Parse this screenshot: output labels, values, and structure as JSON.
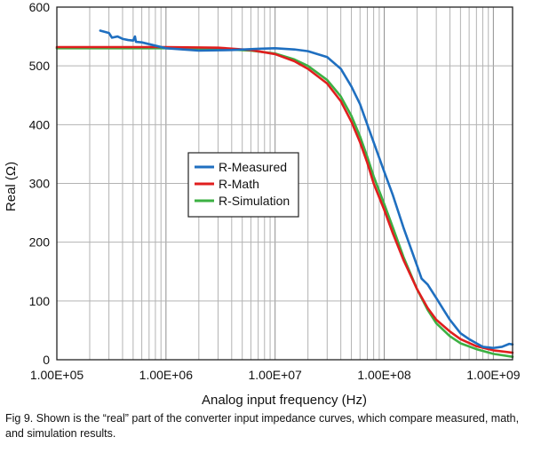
{
  "chart_data": {
    "type": "line",
    "title": "",
    "xlabel": "Analog input frequency (Hz)",
    "ylabel": "Real (Ω)",
    "xscale": "log",
    "xlim": [
      100000,
      1500000000
    ],
    "ylim": [
      0,
      600
    ],
    "x_ticks": [
      {
        "value": 100000,
        "label": "1.00E+05"
      },
      {
        "value": 1000000,
        "label": "1.00E+06"
      },
      {
        "value": 10000000,
        "label": "1.00E+07"
      },
      {
        "value": 100000000,
        "label": "1.00E+08"
      },
      {
        "value": 1000000000,
        "label": "1.00E+09"
      }
    ],
    "y_ticks": [
      0,
      100,
      200,
      300,
      400,
      500,
      600
    ],
    "grid": true,
    "legend_position": "center-left",
    "series": [
      {
        "name": "R-Measured",
        "color": "#1f6fc0",
        "points": [
          [
            250000,
            560
          ],
          [
            300000,
            556
          ],
          [
            320000,
            548
          ],
          [
            360000,
            550
          ],
          [
            400000,
            546
          ],
          [
            450000,
            544
          ],
          [
            500000,
            543
          ],
          [
            520000,
            550
          ],
          [
            530000,
            541
          ],
          [
            600000,
            540
          ],
          [
            700000,
            537
          ],
          [
            1000000,
            530
          ],
          [
            2000000,
            526
          ],
          [
            4000000,
            527
          ],
          [
            7000000,
            529
          ],
          [
            10000000,
            530
          ],
          [
            15000000,
            528
          ],
          [
            20000000,
            525
          ],
          [
            30000000,
            515
          ],
          [
            40000000,
            495
          ],
          [
            50000000,
            465
          ],
          [
            60000000,
            435
          ],
          [
            70000000,
            400
          ],
          [
            80000000,
            370
          ],
          [
            100000000,
            320
          ],
          [
            120000000,
            280
          ],
          [
            150000000,
            225
          ],
          [
            200000000,
            160
          ],
          [
            220000000,
            138
          ],
          [
            250000000,
            128
          ],
          [
            300000000,
            105
          ],
          [
            350000000,
            85
          ],
          [
            400000000,
            68
          ],
          [
            500000000,
            45
          ],
          [
            600000000,
            35
          ],
          [
            700000000,
            28
          ],
          [
            800000000,
            22
          ],
          [
            1000000000,
            20
          ],
          [
            1200000000,
            22
          ],
          [
            1400000000,
            27
          ],
          [
            1500000000,
            26
          ]
        ]
      },
      {
        "name": "R-Math",
        "color": "#e01e1e",
        "points": [
          [
            100000,
            532
          ],
          [
            1000000,
            532
          ],
          [
            3000000,
            531
          ],
          [
            6000000,
            527
          ],
          [
            10000000,
            520
          ],
          [
            15000000,
            508
          ],
          [
            20000000,
            495
          ],
          [
            30000000,
            470
          ],
          [
            40000000,
            440
          ],
          [
            50000000,
            405
          ],
          [
            60000000,
            370
          ],
          [
            70000000,
            335
          ],
          [
            80000000,
            300
          ],
          [
            100000000,
            255
          ],
          [
            120000000,
            215
          ],
          [
            150000000,
            170
          ],
          [
            200000000,
            120
          ],
          [
            250000000,
            88
          ],
          [
            300000000,
            68
          ],
          [
            400000000,
            48
          ],
          [
            500000000,
            35
          ],
          [
            700000000,
            23
          ],
          [
            1000000000,
            16
          ],
          [
            1500000000,
            12
          ]
        ]
      },
      {
        "name": "R-Simulation",
        "color": "#3cb043",
        "points": [
          [
            100000,
            530
          ],
          [
            1000000,
            530
          ],
          [
            3000000,
            529
          ],
          [
            6000000,
            526
          ],
          [
            10000000,
            521
          ],
          [
            15000000,
            511
          ],
          [
            20000000,
            500
          ],
          [
            30000000,
            476
          ],
          [
            40000000,
            448
          ],
          [
            50000000,
            415
          ],
          [
            60000000,
            380
          ],
          [
            70000000,
            345
          ],
          [
            80000000,
            312
          ],
          [
            100000000,
            265
          ],
          [
            120000000,
            225
          ],
          [
            150000000,
            175
          ],
          [
            200000000,
            120
          ],
          [
            250000000,
            85
          ],
          [
            300000000,
            62
          ],
          [
            400000000,
            40
          ],
          [
            500000000,
            28
          ],
          [
            700000000,
            18
          ],
          [
            1000000000,
            10
          ],
          [
            1500000000,
            5
          ]
        ]
      }
    ]
  },
  "caption": "Fig 9. Shown is the “real” part of the converter input impedance curves, which compare measured, math, and simulation results."
}
